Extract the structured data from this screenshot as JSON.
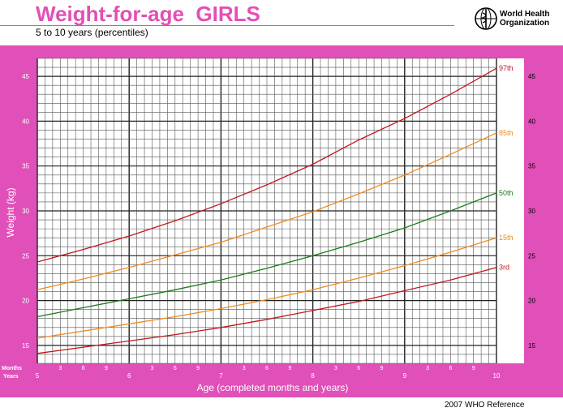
{
  "header": {
    "title": "Weight-for-age  GIRLS",
    "subtitle": "5 to 10 years (percentiles)",
    "org": [
      "World Health",
      "Organization"
    ],
    "footer": "2007 WHO Reference"
  },
  "colors": {
    "frame": "#e050b8",
    "grid": "#555555",
    "p97": "#c0181e",
    "p85": "#f28a1d",
    "p50": "#1e7a1e",
    "p15": "#f28a1d",
    "p3": "#c0181e"
  },
  "chart_data": {
    "type": "line",
    "title": "Weight-for-age  GIRLS",
    "subtitle": "5 to 10 years (percentiles)",
    "xlabel": "Age (completed months and years)",
    "ylabel": "Weight (kg)",
    "x_row_labels": [
      "Months",
      "Years"
    ],
    "xlim": [
      5,
      10
    ],
    "ylim": [
      13,
      47
    ],
    "year_ticks": [
      "5",
      "6",
      "7",
      "8",
      "9",
      "10"
    ],
    "month_ticks": [
      "3",
      "6",
      "9"
    ],
    "y_ticks": [
      15,
      20,
      25,
      30,
      35,
      40,
      45
    ],
    "grid": true,
    "x": [
      5,
      5.5,
      6,
      6.5,
      7,
      7.5,
      8,
      8.5,
      9,
      9.5,
      10
    ],
    "series": [
      {
        "name": "97th",
        "color_key": "p97",
        "values": [
          24.3,
          25.7,
          27.2,
          28.9,
          30.8,
          32.9,
          35.2,
          37.9,
          40.3,
          43.0,
          45.9
        ]
      },
      {
        "name": "85th",
        "color_key": "p85",
        "values": [
          21.2,
          22.4,
          23.7,
          25.1,
          26.5,
          28.2,
          29.9,
          31.9,
          34.0,
          36.3,
          38.7
        ]
      },
      {
        "name": "50th",
        "color_key": "p50",
        "values": [
          18.2,
          19.2,
          20.2,
          21.2,
          22.3,
          23.6,
          25.0,
          26.5,
          28.1,
          30.0,
          32.0
        ]
      },
      {
        "name": "15th",
        "color_key": "p15",
        "values": [
          15.8,
          16.6,
          17.4,
          18.2,
          19.1,
          20.1,
          21.2,
          22.5,
          23.9,
          25.4,
          27.0
        ]
      },
      {
        "name": "3rd",
        "color_key": "p3",
        "values": [
          14.1,
          14.8,
          15.5,
          16.2,
          17.0,
          17.9,
          18.9,
          19.9,
          21.1,
          22.3,
          23.7
        ]
      }
    ]
  }
}
